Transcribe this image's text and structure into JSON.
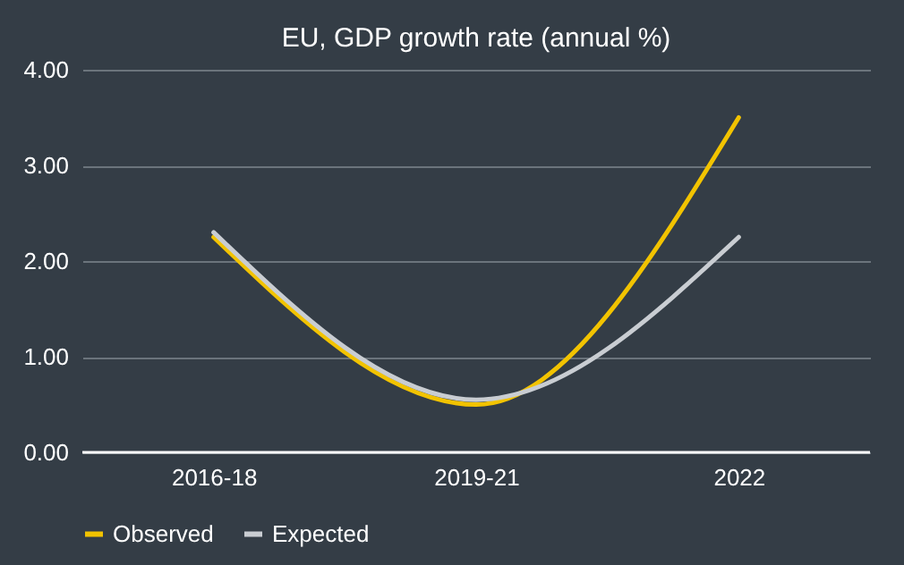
{
  "chart_data": {
    "type": "line",
    "title": "EU, GDP growth rate (annual %)",
    "categories": [
      "2016-18",
      "2019-21",
      "2022"
    ],
    "series": [
      {
        "name": "Observed",
        "color": "#f2c300",
        "values": [
          2.25,
          0.5,
          3.5
        ]
      },
      {
        "name": "Expected",
        "color": "#c9cdd2",
        "values": [
          2.3,
          0.55,
          2.25
        ]
      }
    ],
    "ylim": [
      0,
      4
    ],
    "yticks": [
      {
        "value": 0,
        "label": "0.00"
      },
      {
        "value": 1,
        "label": "1.00"
      },
      {
        "value": 2,
        "label": "2.00"
      },
      {
        "value": 3,
        "label": "3.00"
      },
      {
        "value": 4,
        "label": "4.00"
      }
    ],
    "grid": "y",
    "legend": "bottom",
    "marker": "none",
    "line_style": "solid"
  }
}
